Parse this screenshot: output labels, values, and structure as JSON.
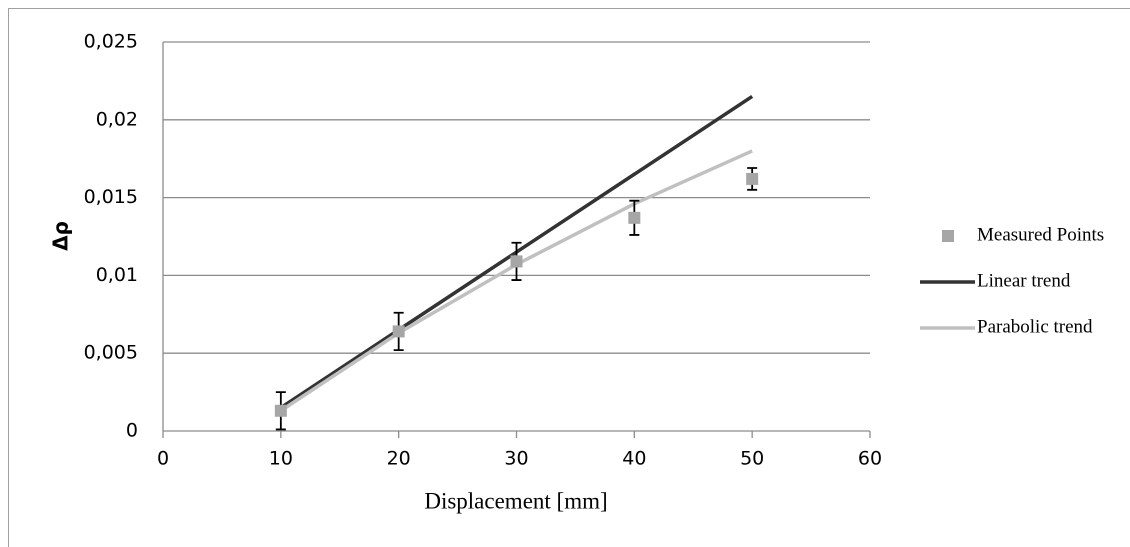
{
  "chart_data": {
    "type": "scatter",
    "x_label": "Displacement [mm]",
    "y_label": "Δρ",
    "xlim": [
      0,
      60
    ],
    "xticks": [
      0,
      10,
      20,
      30,
      40,
      50,
      60
    ],
    "ylim": [
      0,
      0.025
    ],
    "yticks": [
      0,
      {
        "value": 0.005,
        "label": "0,005"
      },
      {
        "value": 0.01,
        "label": "0,01"
      },
      {
        "value": 0.015,
        "label": "0,015"
      },
      {
        "value": 0.02,
        "label": "0,02"
      },
      {
        "value": 0.025,
        "label": "0,025"
      }
    ],
    "grid": true,
    "legend": "right",
    "series": [
      {
        "name": "Measured Points",
        "kind": "points",
        "color": "#a6a6a6",
        "x": [
          10,
          20,
          30,
          40,
          50
        ],
        "values": [
          0.0013,
          0.0064,
          0.0109,
          0.0137,
          0.0162
        ],
        "errors": [
          0.0012,
          0.0012,
          0.0012,
          0.0011,
          0.0007
        ]
      },
      {
        "name": "Linear trend",
        "kind": "line",
        "color": "#333333",
        "x": [
          10,
          20,
          30,
          40,
          50
        ],
        "values": [
          0.0015,
          0.0065,
          0.0115,
          0.0165,
          0.0215
        ]
      },
      {
        "name": "Parabolic trend",
        "kind": "line",
        "color": "#c0c0c0",
        "x": [
          10,
          20,
          30,
          40,
          50
        ],
        "values": [
          0.0013,
          0.0063,
          0.0107,
          0.0146,
          0.018
        ]
      }
    ]
  }
}
